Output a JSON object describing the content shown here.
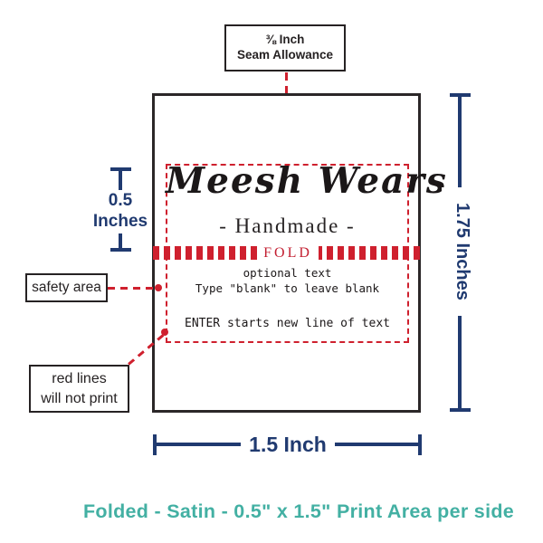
{
  "colors": {
    "red_guides": "#cf202e",
    "navy_measurements": "#203a70",
    "ink": "#262223",
    "caption_teal": "#43b0a3"
  },
  "seam_callout": {
    "line1": "⅜ Inch",
    "line2": "Seam Allowance"
  },
  "label": {
    "brand": "Meesh Wears",
    "tagline": "- Handmade -",
    "fold": "FOLD",
    "optional_line1": "optional text",
    "optional_line2": "Type \"blank\" to leave blank",
    "enter_hint": "ENTER starts new line of text"
  },
  "measurements": {
    "fold_height_value": "0.5",
    "fold_height_unit": "Inches",
    "full_height": "1.75 Inches",
    "width": "1.5 Inch"
  },
  "callouts": {
    "safety_area": "safety area",
    "red_lines_line1": "red lines",
    "red_lines_line2": "will not print"
  },
  "caption": "Folded - Satin - 0.5\" x 1.5\" Print Area per side"
}
